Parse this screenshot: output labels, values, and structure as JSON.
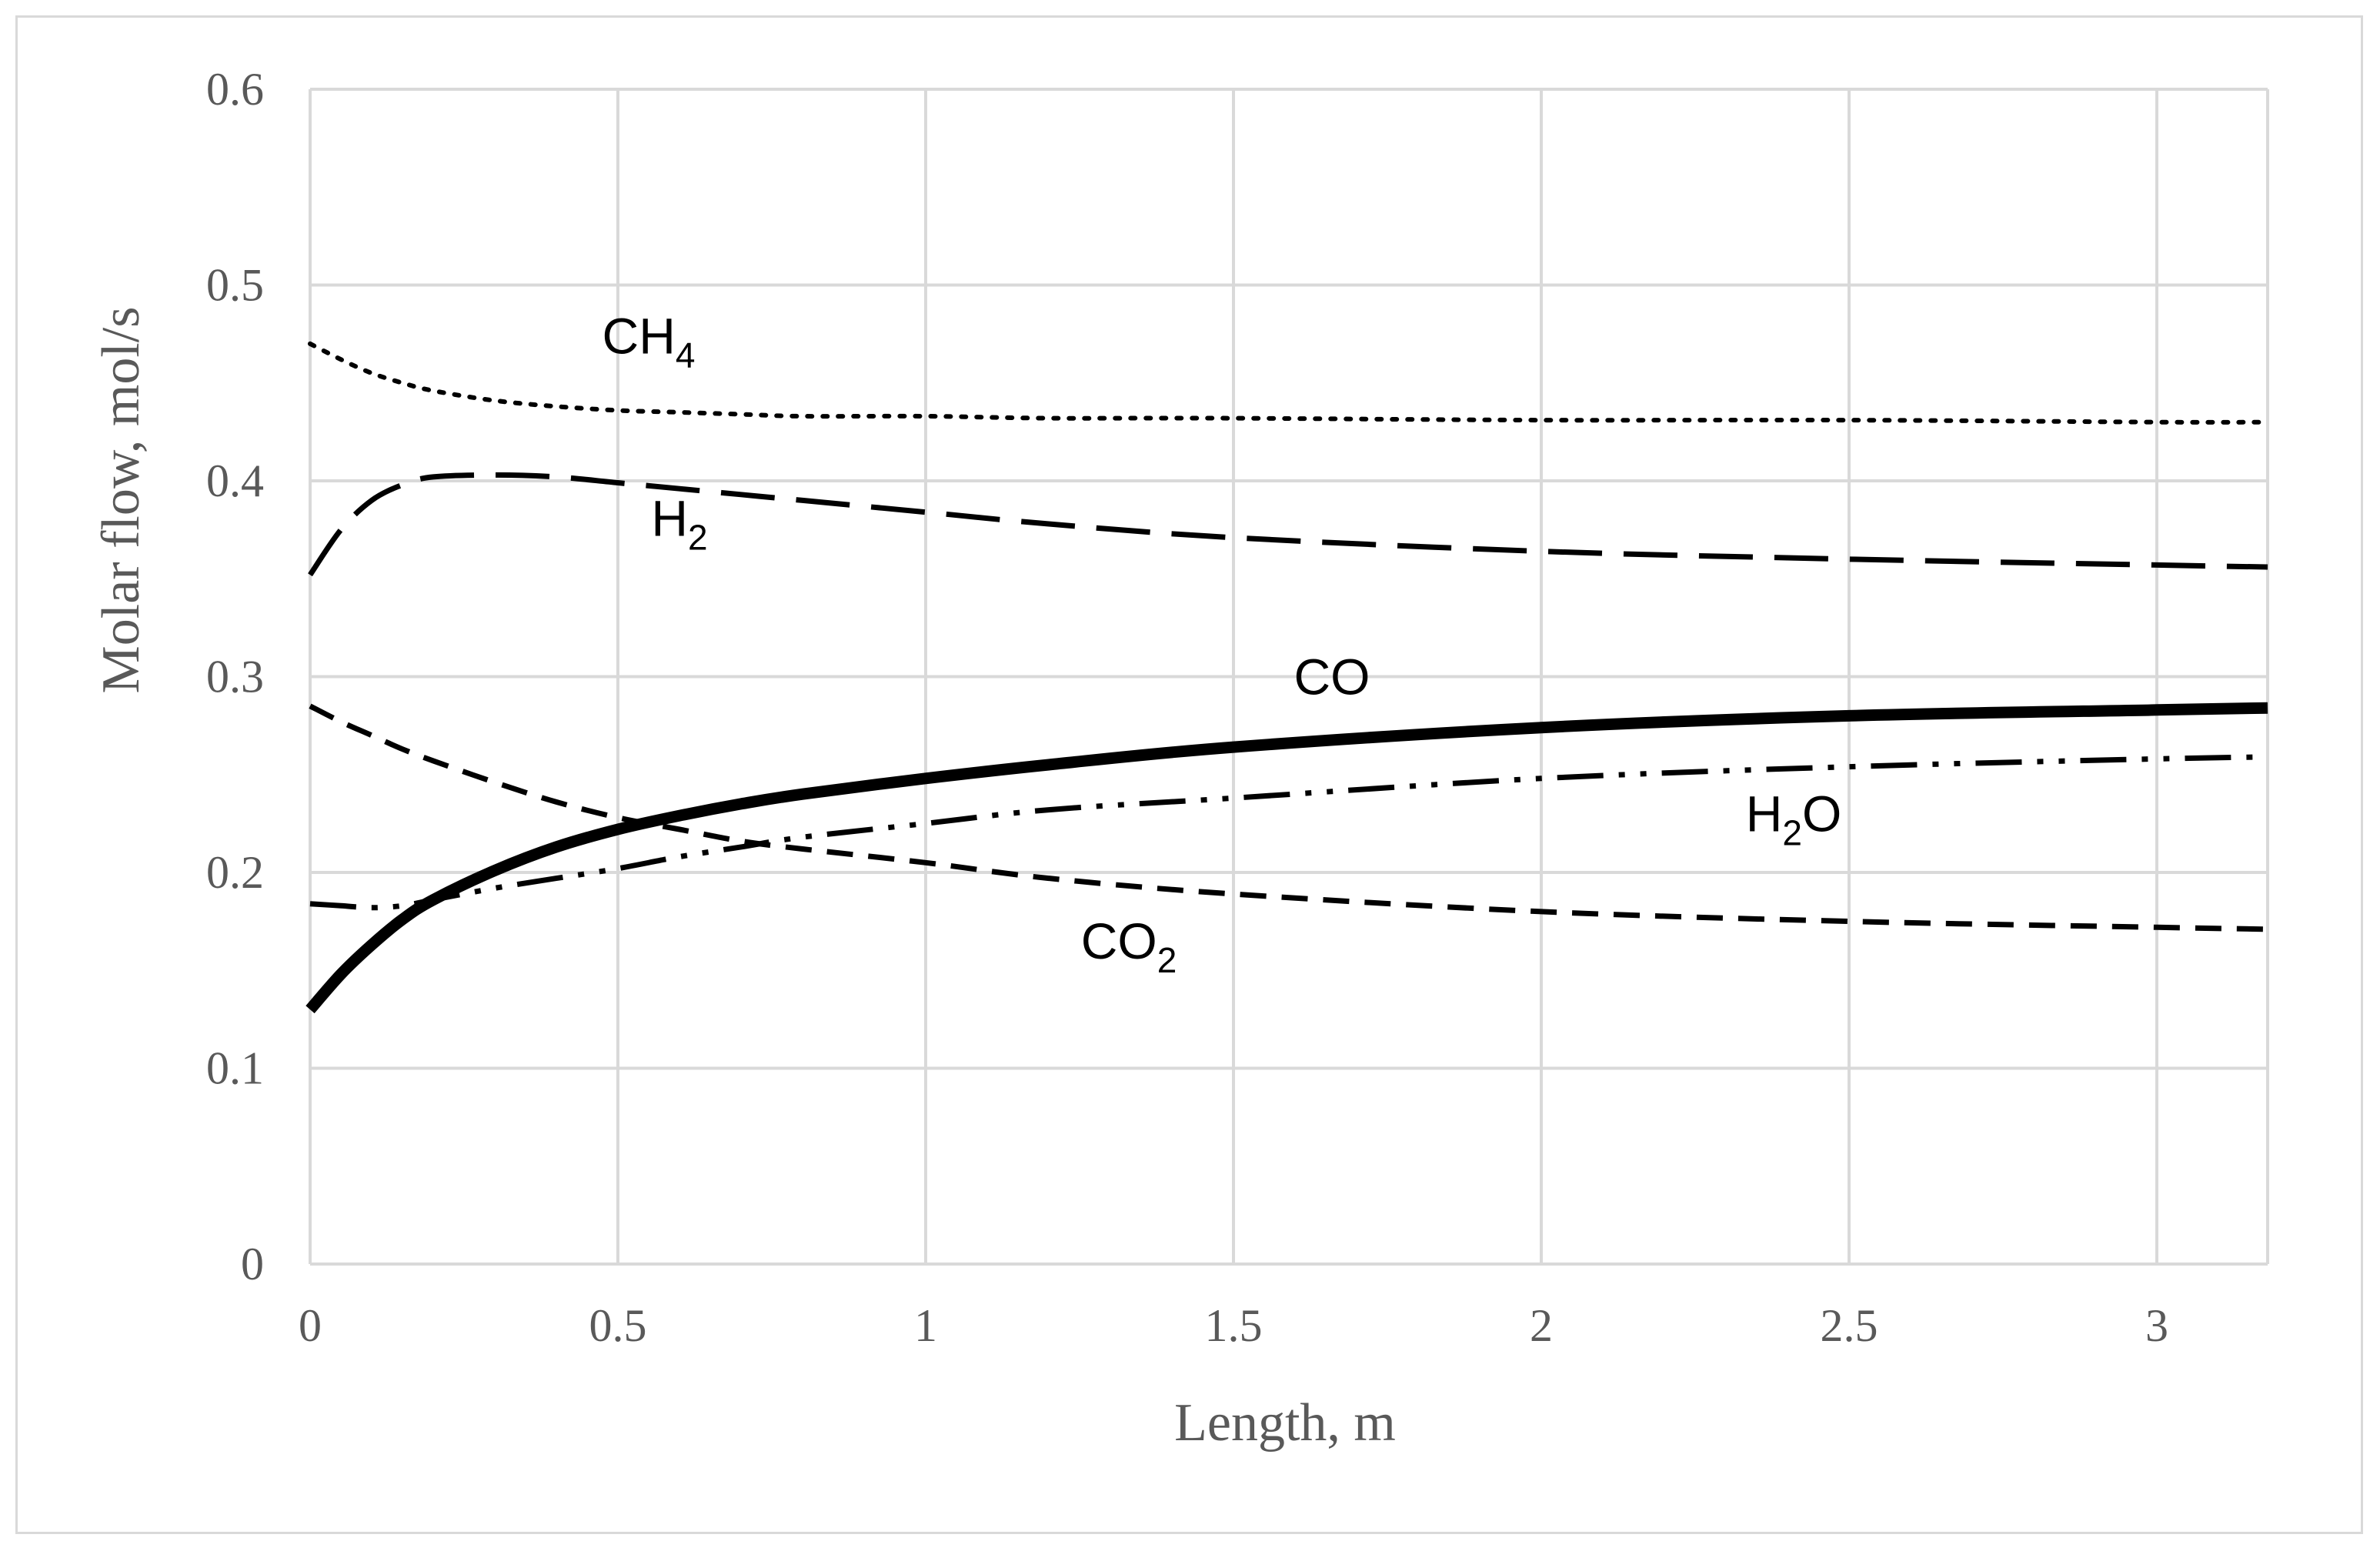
{
  "chart_data": {
    "type": "line",
    "title": "",
    "xlabel": "Length, m",
    "ylabel": "Molar flow, mol/s",
    "xlim": [
      0,
      3.18
    ],
    "ylim": [
      0,
      0.6
    ],
    "grid": true,
    "x_ticks": [
      "0",
      "0.5",
      "1",
      "1.5",
      "2",
      "2.5",
      "3"
    ],
    "y_ticks": [
      "0",
      "0.1",
      "0.2",
      "0.3",
      "0.4",
      "0.5",
      "0.6"
    ],
    "x": [
      0,
      0.05,
      0.1,
      0.15,
      0.2,
      0.3,
      0.4,
      0.5,
      0.6,
      0.7,
      0.8,
      1.0,
      1.2,
      1.5,
      2.0,
      2.5,
      3.0,
      3.18
    ],
    "series": [
      {
        "name": "CH4",
        "label_main": "CH",
        "label_sub": "4",
        "style": "dotted",
        "width": 6,
        "values": [
          0.47,
          0.462,
          0.455,
          0.45,
          0.446,
          0.441,
          0.438,
          0.436,
          0.435,
          0.434,
          0.433,
          0.433,
          0.432,
          0.432,
          0.431,
          0.431,
          0.43,
          0.43
        ]
      },
      {
        "name": "H2",
        "label_main": "H",
        "label_sub": "2",
        "style": "long-dash",
        "width": 7,
        "values": [
          0.352,
          0.375,
          0.39,
          0.398,
          0.402,
          0.403,
          0.402,
          0.399,
          0.396,
          0.393,
          0.39,
          0.384,
          0.378,
          0.371,
          0.364,
          0.36,
          0.357,
          0.356
        ]
      },
      {
        "name": "CO",
        "label_main": "CO",
        "label_sub": "",
        "style": "solid",
        "width": 15,
        "values": [
          0.13,
          0.148,
          0.163,
          0.176,
          0.186,
          0.201,
          0.213,
          0.222,
          0.229,
          0.235,
          0.24,
          0.248,
          0.255,
          0.264,
          0.274,
          0.28,
          0.283,
          0.284
        ]
      },
      {
        "name": "H2O",
        "label_main": "H",
        "label_sub": "2",
        "label_tail": "O",
        "style": "dash-dot-dot",
        "width": 7,
        "values": [
          0.184,
          0.183,
          0.182,
          0.183,
          0.186,
          0.192,
          0.197,
          0.202,
          0.208,
          0.213,
          0.218,
          0.225,
          0.232,
          0.238,
          0.248,
          0.254,
          0.258,
          0.259
        ]
      },
      {
        "name": "CO2",
        "label_main": "CO",
        "label_sub": "2",
        "style": "short-dash",
        "width": 7,
        "values": [
          0.285,
          0.277,
          0.27,
          0.263,
          0.257,
          0.246,
          0.236,
          0.228,
          0.222,
          0.216,
          0.212,
          0.205,
          0.197,
          0.189,
          0.18,
          0.175,
          0.172,
          0.171
        ]
      }
    ],
    "labels": [
      {
        "series": "CH4",
        "x": 0.55,
        "y": 0.465
      },
      {
        "series": "H2",
        "x": 0.6,
        "y": 0.372
      },
      {
        "series": "CO",
        "x": 1.66,
        "y": 0.291
      },
      {
        "series": "H2O",
        "x": 2.41,
        "y": 0.221
      },
      {
        "series": "CO2",
        "x": 1.33,
        "y": 0.156
      }
    ]
  }
}
